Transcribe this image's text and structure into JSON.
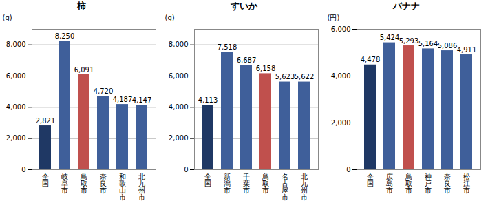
{
  "chart_data": [
    {
      "type": "bar",
      "title": "柿",
      "y_label": "(g)",
      "categories": [
        "全国",
        "岐阜市",
        "鳥取市",
        "奈良市",
        "和歌山市",
        "北九州市"
      ],
      "values": [
        2821,
        8250,
        6091,
        4720,
        4187,
        4147
      ],
      "value_labels": [
        "2,821",
        "8,250",
        "6,091",
        "4,720",
        "4,187",
        "4,147"
      ],
      "colors": [
        "#1f3864",
        "#3f5f9a",
        "#c0504d",
        "#3f5f9a",
        "#3f5f9a",
        "#3f5f9a"
      ],
      "ylim": [
        0,
        9000
      ],
      "yticks": [
        0,
        {
          "value": 2000,
          "label": "2,000"
        },
        {
          "value": 4000,
          "label": "4,000"
        },
        {
          "value": 6000,
          "label": "6,000"
        },
        {
          "value": 8000,
          "label": "8,000"
        }
      ],
      "grid": true,
      "data_labels": true
    },
    {
      "type": "bar",
      "title": "すいか",
      "y_label": "(g)",
      "categories": [
        "全国",
        "新潟市",
        "千葉市",
        "鳥取市",
        "名古屋市",
        "北九州市"
      ],
      "values": [
        4113,
        7518,
        6687,
        6158,
        5623,
        5622
      ],
      "value_labels": [
        "4,113",
        "7,518",
        "6,687",
        "6,158",
        "5,623",
        "5,622"
      ],
      "colors": [
        "#1f3864",
        "#3f5f9a",
        "#3f5f9a",
        "#c0504d",
        "#3f5f9a",
        "#3f5f9a"
      ],
      "ylim": [
        0,
        9000
      ],
      "yticks": [
        0,
        {
          "value": 2000,
          "label": "2,000"
        },
        {
          "value": 4000,
          "label": "4,000"
        },
        {
          "value": 6000,
          "label": "6,000"
        },
        {
          "value": 8000,
          "label": "8,000"
        }
      ],
      "grid": true,
      "data_labels": true
    },
    {
      "type": "bar",
      "title": "バナナ",
      "y_label": "(円)",
      "categories": [
        "全国",
        "広島市",
        "鳥取市",
        "神戸市",
        "奈良市",
        "松江市"
      ],
      "values": [
        4478,
        5424,
        5293,
        5164,
        5086,
        4911
      ],
      "value_labels": [
        "4,478",
        "5,424",
        "5,293",
        "5,164",
        "5,086",
        "4,911"
      ],
      "colors": [
        "#1f3864",
        "#3f5f9a",
        "#c0504d",
        "#3f5f9a",
        "#3f5f9a",
        "#3f5f9a"
      ],
      "ylim": [
        0,
        6000
      ],
      "yticks": [
        0,
        {
          "value": 2000,
          "label": "2,000"
        },
        {
          "value": 4000,
          "label": "4,000"
        },
        {
          "value": 6000,
          "label": "6,000"
        }
      ],
      "grid": true,
      "data_labels": true
    }
  ]
}
